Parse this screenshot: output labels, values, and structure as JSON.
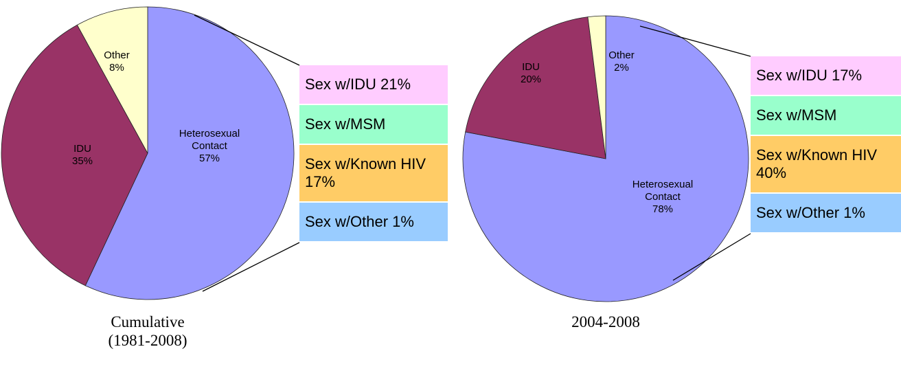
{
  "chart_data": [
    {
      "type": "pie",
      "title": "Cumulative (1981-2008)",
      "categories": [
        "Heterosexual Contact",
        "IDU",
        "Other"
      ],
      "values": [
        57,
        35,
        8
      ],
      "value_labels": [
        "57%",
        "35%",
        "8%"
      ],
      "colors": [
        "#9999ff",
        "#993366",
        "#ffffcc"
      ],
      "breakout": {
        "categories": [
          "Sex w/IDU",
          "Sex w/MSM",
          "Sex w/Known HIV",
          "Sex w/Other"
        ],
        "values": [
          21,
          null,
          17,
          1
        ],
        "value_labels": [
          "21%",
          null,
          "17%",
          "1%"
        ],
        "colors": [
          "#ffccff",
          "#99ffcc",
          "#ffcc66",
          "#99ccff"
        ]
      }
    },
    {
      "type": "pie",
      "title": "2004-2008",
      "categories": [
        "Heterosexual Contact",
        "IDU",
        "Other"
      ],
      "values": [
        78,
        20,
        2
      ],
      "value_labels": [
        "78%",
        "20%",
        "2%"
      ],
      "colors": [
        "#9999ff",
        "#993366",
        "#ffffcc"
      ],
      "breakout": {
        "categories": [
          "Sex w/IDU",
          "Sex w/MSM",
          "Sex w/Known HIV",
          "Sex w/Other"
        ],
        "values": [
          17,
          null,
          40,
          1
        ],
        "value_labels": [
          "17%",
          null,
          "40%",
          "1%"
        ],
        "colors": [
          "#ffccff",
          "#99ffcc",
          "#ffcc66",
          "#99ccff"
        ]
      }
    }
  ]
}
